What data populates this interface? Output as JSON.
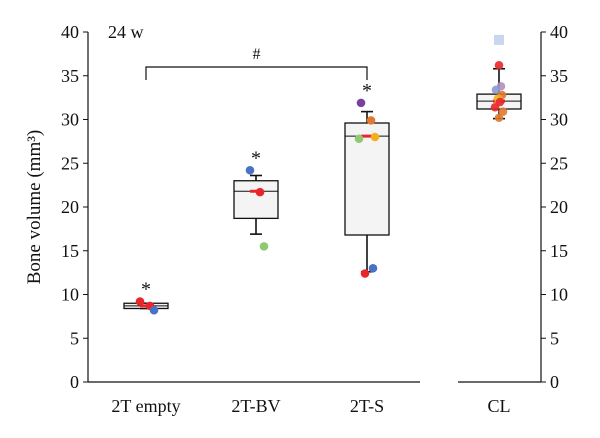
{
  "chart_data": [
    {
      "type": "box",
      "title": "24 w",
      "ylabel": "Bone volume (mm³)",
      "ylim": [
        0,
        40
      ],
      "yticks": [
        0,
        5,
        10,
        15,
        20,
        25,
        30,
        35,
        40
      ],
      "categories": [
        "2T empty",
        "2T-BV",
        "2T-S"
      ],
      "boxes": [
        {
          "category": "2T empty",
          "q1": 8.4,
          "median": 8.7,
          "q3": 9.0,
          "whisker_low": 8.4,
          "whisker_high": 9.0,
          "mean": 8.7,
          "significance": "*"
        },
        {
          "category": "2T-BV",
          "q1": 18.7,
          "median": 21.8,
          "q3": 23.0,
          "whisker_low": 16.9,
          "whisker_high": 23.6,
          "mean": 21.8,
          "significance": "*"
        },
        {
          "category": "2T-S",
          "q1": 16.8,
          "median": 28.1,
          "q3": 29.6,
          "whisker_low": 12.6,
          "whisker_high": 30.9,
          "mean": 28.1,
          "significance": "*"
        }
      ],
      "points": [
        {
          "category": "2T empty",
          "y": 9.2,
          "color": "#e8262a"
        },
        {
          "category": "2T empty",
          "y": 8.7,
          "color": "#e8262a"
        },
        {
          "category": "2T empty",
          "y": 8.2,
          "color": "#4a72c4"
        },
        {
          "category": "2T-BV",
          "y": 24.2,
          "color": "#4a72c4"
        },
        {
          "category": "2T-BV",
          "y": 21.7,
          "color": "#e8262a"
        },
        {
          "category": "2T-BV",
          "y": 15.5,
          "color": "#8fca70"
        },
        {
          "category": "2T-S",
          "y": 31.9,
          "color": "#7b3fa0"
        },
        {
          "category": "2T-S",
          "y": 29.9,
          "color": "#e07a30"
        },
        {
          "category": "2T-S",
          "y": 28.0,
          "color": "#f2b01e"
        },
        {
          "category": "2T-S",
          "y": 27.8,
          "color": "#8fca70"
        },
        {
          "category": "2T-S",
          "y": 13.0,
          "color": "#4a72c4"
        },
        {
          "category": "2T-S",
          "y": 12.4,
          "color": "#e8262a"
        }
      ],
      "bracket": {
        "from": "2T empty",
        "to": "2T-S",
        "label": "#",
        "y": 36.0
      }
    },
    {
      "type": "box",
      "ylim": [
        0,
        40
      ],
      "yticks": [
        0,
        5,
        10,
        15,
        20,
        25,
        30,
        35,
        40
      ],
      "categories": [
        "CL"
      ],
      "boxes": [
        {
          "category": "CL",
          "q1": 31.2,
          "median": 32.1,
          "q3": 32.9,
          "whisker_low": 30.1,
          "whisker_high": 35.8,
          "mean": 32.1
        }
      ],
      "points": [
        {
          "category": "CL",
          "y": 39.1,
          "color": "#c8d6ee"
        },
        {
          "category": "CL",
          "y": 36.2,
          "color": "#e8262a"
        },
        {
          "category": "CL",
          "y": 33.8,
          "color": "#b08fc0"
        },
        {
          "category": "CL",
          "y": 33.4,
          "color": "#8a9ad0"
        },
        {
          "category": "CL",
          "y": 32.8,
          "color": "#e07a30"
        },
        {
          "category": "CL",
          "y": 32.4,
          "color": "#f2b01e"
        },
        {
          "category": "CL",
          "y": 32.0,
          "color": "#e8262a"
        },
        {
          "category": "CL",
          "y": 31.4,
          "color": "#e8262a"
        },
        {
          "category": "CL",
          "y": 30.9,
          "color": "#e07a30"
        },
        {
          "category": "CL",
          "y": 30.2,
          "color": "#e07a30"
        }
      ]
    }
  ],
  "colors": {
    "box_fill": "#f4f4f4",
    "axis": "#111111",
    "mean_marker": "#e8262a"
  }
}
